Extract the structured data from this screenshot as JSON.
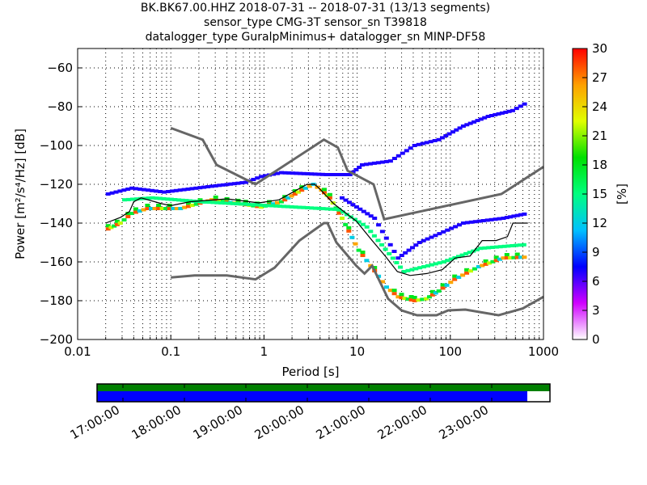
{
  "title_lines": [
    "BK.BK67.00.HHZ   2018-07-31 -- 2018-07-31  (13/13 segments)",
    "sensor_type CMG-3T sensor_sn T39818",
    "datalogger_type GuralpMinimus+ datalogger_sn MINP-DF58"
  ],
  "chart_data": {
    "type": "heatmap",
    "xlabel": "Period [s]",
    "ylabel": "Power [m²/s⁴/Hz] [dB]",
    "xscale": "log",
    "xlim": [
      0.01,
      1000
    ],
    "ylim": [
      -200,
      -50
    ],
    "xticks": [
      {
        "v": 0.01,
        "label": "0.01"
      },
      {
        "v": 0.1,
        "label": "0.1"
      },
      {
        "v": 1,
        "label": "1"
      },
      {
        "v": 10,
        "label": "10"
      },
      {
        "v": 100,
        "label": "100"
      },
      {
        "v": 1000,
        "label": "1000"
      }
    ],
    "yticks": [
      {
        "v": -60,
        "label": "−60"
      },
      {
        "v": -80,
        "label": "−80"
      },
      {
        "v": -100,
        "label": "−100"
      },
      {
        "v": -120,
        "label": "−120"
      },
      {
        "v": -140,
        "label": "−140"
      },
      {
        "v": -160,
        "label": "−160"
      },
      {
        "v": -180,
        "label": "−180"
      },
      {
        "v": -200,
        "label": "−200"
      }
    ],
    "grid": true,
    "noise_models": [
      {
        "name": "NHNM",
        "color": "#666666",
        "points": [
          [
            0.1,
            -91
          ],
          [
            0.22,
            -97
          ],
          [
            0.31,
            -110
          ],
          [
            0.81,
            -120
          ],
          [
            4.4,
            -97
          ],
          [
            6.2,
            -101
          ],
          [
            7.9,
            -113
          ],
          [
            15,
            -120
          ],
          [
            19.5,
            -138
          ],
          [
            354,
            -125
          ],
          [
            1000,
            -111
          ]
        ]
      },
      {
        "name": "NLNM",
        "color": "#666666",
        "points": [
          [
            0.1,
            -168
          ],
          [
            0.18,
            -167
          ],
          [
            0.4,
            -167
          ],
          [
            0.81,
            -169
          ],
          [
            1.3,
            -163
          ],
          [
            2.4,
            -149
          ],
          [
            4.4,
            -140
          ],
          [
            4.8,
            -140
          ],
          [
            6,
            -150
          ],
          [
            9.8,
            -162
          ],
          [
            12,
            -166
          ],
          [
            14.5,
            -162
          ],
          [
            21.5,
            -179
          ],
          [
            30,
            -185
          ],
          [
            44,
            -187.5
          ],
          [
            71,
            -187.5
          ],
          [
            95,
            -185
          ],
          [
            145,
            -184.6
          ],
          [
            330,
            -187.5
          ],
          [
            600,
            -184
          ],
          [
            1000,
            -178
          ]
        ]
      }
    ],
    "mean": {
      "name": "mean",
      "color": "#000000",
      "points": [
        [
          0.02,
          -140
        ],
        [
          0.029,
          -137
        ],
        [
          0.036,
          -134
        ],
        [
          0.04,
          -129
        ],
        [
          0.048,
          -127
        ],
        [
          0.08,
          -130
        ],
        [
          0.1,
          -131
        ],
        [
          0.16,
          -129
        ],
        [
          0.4,
          -127.5
        ],
        [
          0.88,
          -129.6
        ],
        [
          1.45,
          -128
        ],
        [
          2.9,
          -120
        ],
        [
          3.5,
          -120
        ],
        [
          3.9,
          -122
        ],
        [
          5.6,
          -130
        ],
        [
          9.8,
          -139
        ],
        [
          14.5,
          -149
        ],
        [
          20,
          -157
        ],
        [
          27,
          -165
        ],
        [
          37,
          -167
        ],
        [
          56,
          -166
        ],
        [
          82,
          -164
        ],
        [
          113,
          -158
        ],
        [
          163,
          -157
        ],
        [
          220,
          -149
        ],
        [
          310,
          -149
        ],
        [
          410,
          -147
        ],
        [
          470,
          -140
        ],
        [
          680,
          -140
        ]
      ]
    },
    "series": [
      {
        "name": "mode",
        "percent": 28,
        "points": [
          [
            0.02,
            -143
          ],
          [
            0.027,
            -140
          ],
          [
            0.036,
            -135
          ],
          [
            0.053,
            -132.5
          ],
          [
            0.12,
            -132.5
          ],
          [
            0.26,
            -128
          ],
          [
            0.6,
            -130.5
          ],
          [
            0.88,
            -131.7
          ],
          [
            1.45,
            -129
          ],
          [
            2.4,
            -123
          ],
          [
            3.2,
            -120
          ],
          [
            3.9,
            -123
          ],
          [
            4.8,
            -127
          ],
          [
            6.5,
            -137.5
          ],
          [
            9.8,
            -154
          ],
          [
            14.5,
            -164.6
          ],
          [
            19.5,
            -173
          ],
          [
            26,
            -178
          ],
          [
            39,
            -180
          ],
          [
            52,
            -179
          ],
          [
            71,
            -175
          ],
          [
            105,
            -169
          ],
          [
            190,
            -162.5
          ],
          [
            350,
            -158
          ],
          [
            640,
            -157.5
          ]
        ]
      },
      {
        "name": "upper-spread",
        "percent": 7,
        "points": [
          [
            0.02,
            -125
          ],
          [
            0.036,
            -122
          ],
          [
            0.08,
            -124
          ],
          [
            0.26,
            -121
          ],
          [
            0.6,
            -119
          ],
          [
            0.88,
            -116
          ],
          [
            1.45,
            -114
          ],
          [
            4.4,
            -115
          ],
          [
            7.9,
            -115
          ],
          [
            10.7,
            -110
          ],
          [
            21.5,
            -108
          ],
          [
            39,
            -100
          ],
          [
            71,
            -97
          ],
          [
            130,
            -90
          ],
          [
            240,
            -85
          ],
          [
            440,
            -82
          ],
          [
            650,
            -77.5
          ]
        ]
      },
      {
        "name": "lower-spread",
        "percent": 7,
        "points": [
          [
            6.5,
            -127
          ],
          [
            14.5,
            -137.5
          ],
          [
            26,
            -158
          ],
          [
            44,
            -150
          ],
          [
            130,
            -140
          ],
          [
            350,
            -137.5
          ],
          [
            640,
            -135
          ]
        ]
      },
      {
        "name": "mid-spread",
        "percent": 15,
        "points": [
          [
            0.03,
            -128
          ],
          [
            0.06,
            -127
          ],
          [
            0.2,
            -129
          ],
          [
            6,
            -133
          ],
          [
            12,
            -142
          ],
          [
            30,
            -165
          ],
          [
            80,
            -160
          ],
          [
            200,
            -153
          ],
          [
            640,
            -151
          ]
        ]
      }
    ],
    "colorbar": {
      "label": "[%]",
      "range": [
        0,
        30
      ],
      "ticks": [
        "0",
        "3",
        "6",
        "9",
        "12",
        "15",
        "18",
        "21",
        "24",
        "27",
        "30"
      ],
      "colors": [
        "#ffffff",
        "#d000ff",
        "#0000ff",
        "#00c0ff",
        "#00ff80",
        "#00e000",
        "#e0ff00",
        "#ffa000",
        "#ff0000"
      ]
    },
    "timeline": {
      "tick_labels": [
        "17:00:00",
        "18:00:00",
        "19:00:00",
        "20:00:00",
        "21:00:00",
        "22:00:00",
        "23:00:00"
      ],
      "coverage_fraction": 0.95,
      "colors": {
        "data": "#008000",
        "processed": "#0000ff"
      }
    }
  }
}
